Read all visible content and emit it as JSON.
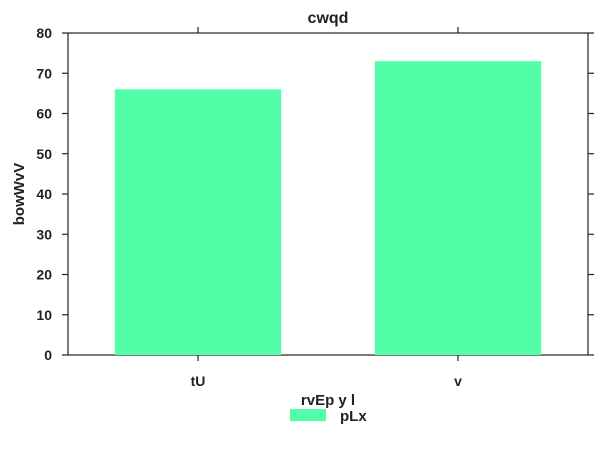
{
  "chart_data": {
    "type": "bar",
    "title": "cwqd",
    "xlabel": "rvEp y l",
    "ylabel": "bowWvV",
    "categories": [
      "tU",
      "v"
    ],
    "series": [
      {
        "name": "pLx",
        "values": [
          66,
          73
        ],
        "color": "#52ffa8"
      }
    ],
    "ylim": [
      0,
      80
    ],
    "yticks": [
      0,
      10,
      20,
      30,
      40,
      50,
      60,
      70,
      80
    ],
    "grid": false,
    "legend_position": "bottom-center"
  }
}
